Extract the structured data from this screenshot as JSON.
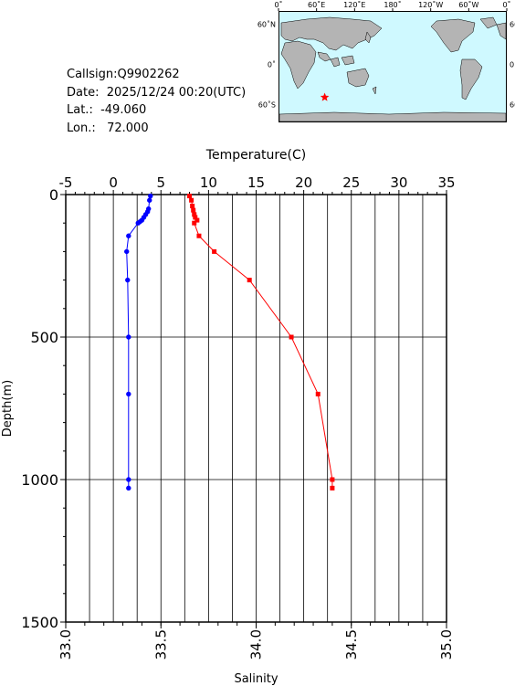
{
  "station": {
    "callsign": "Callsign:Q9902262",
    "date": "Date:  2025/12/24 00:20(UTC)",
    "lat": "Lat.:  -49.060",
    "lon": "Lon.:   72.000"
  },
  "map": {
    "lon_ticks": [
      "0˚",
      "60˚E",
      "120˚E",
      "180˚",
      "120˚W",
      "60˚W",
      "0˚"
    ],
    "lat_ticks": [
      "60˚N",
      "0˚",
      "60˚S"
    ],
    "ocean_color": "#cff9ff",
    "land_color": "#b4b4b4",
    "marker": {
      "lon": 72.0,
      "lat": -49.06,
      "color": "#ff0000",
      "icon": "star-icon"
    }
  },
  "chart_data": {
    "type": "line",
    "ylabel": "Depth(m)",
    "ylim": [
      0,
      1500
    ],
    "yticks": [
      "0",
      "500",
      "1000",
      "1500"
    ],
    "y_inverted": true,
    "grid": true,
    "top_axis": {
      "label": "Temperature(C)",
      "range": [
        -5,
        35
      ],
      "ticks": [
        "-5",
        "0",
        "5",
        "10",
        "15",
        "20",
        "25",
        "30",
        "35"
      ]
    },
    "bottom_axis": {
      "label": "Salinity",
      "range": [
        33.0,
        35.0
      ],
      "ticks": [
        "33.0",
        "33.5",
        "34.0",
        "34.5",
        "35.0"
      ]
    },
    "series": [
      {
        "variable": "temperature",
        "axis": "top",
        "color": "#ff0000",
        "marker": "square",
        "points": [
          [
            8.0,
            5
          ],
          [
            8.2,
            20
          ],
          [
            8.3,
            40
          ],
          [
            8.4,
            55
          ],
          [
            8.5,
            70
          ],
          [
            8.6,
            80
          ],
          [
            8.8,
            90
          ],
          [
            8.5,
            100
          ],
          [
            9.0,
            145
          ],
          [
            10.6,
            200
          ],
          [
            14.3,
            300
          ],
          [
            18.7,
            500
          ],
          [
            21.5,
            700
          ],
          [
            23.0,
            1000
          ],
          [
            23.0,
            1030
          ]
        ]
      },
      {
        "variable": "salinity",
        "axis": "bottom",
        "color": "#0000ff",
        "marker": "circle",
        "points": [
          [
            33.445,
            5
          ],
          [
            33.44,
            20
          ],
          [
            33.435,
            50
          ],
          [
            33.43,
            60
          ],
          [
            33.42,
            70
          ],
          [
            33.41,
            80
          ],
          [
            33.4,
            90
          ],
          [
            33.39,
            95
          ],
          [
            33.38,
            100
          ],
          [
            33.33,
            145
          ],
          [
            33.32,
            200
          ],
          [
            33.325,
            300
          ],
          [
            33.33,
            500
          ],
          [
            33.33,
            700
          ],
          [
            33.33,
            1000
          ],
          [
            33.33,
            1030
          ]
        ]
      }
    ]
  }
}
